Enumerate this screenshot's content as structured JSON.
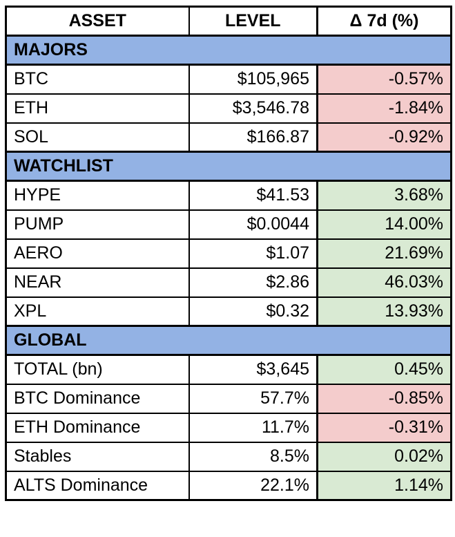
{
  "colors": {
    "section_blue": "#93b2e4",
    "negative_red": "#f4cccc",
    "positive_green": "#d9ead3",
    "border_black": "#000000"
  },
  "chart_data": {
    "type": "table",
    "columns": [
      "ASSET",
      "LEVEL",
      "Δ 7d (%)"
    ],
    "sections": [
      {
        "label": "MAJORS",
        "rows": [
          {
            "asset": "BTC",
            "level": "$105,965",
            "delta": "-0.57%",
            "delta_value": -0.57
          },
          {
            "asset": "ETH",
            "level": "$3,546.78",
            "delta": "-1.84%",
            "delta_value": -1.84
          },
          {
            "asset": "SOL",
            "level": "$166.87",
            "delta": "-0.92%",
            "delta_value": -0.92
          }
        ]
      },
      {
        "label": "WATCHLIST",
        "rows": [
          {
            "asset": "HYPE",
            "level": "$41.53",
            "delta": "3.68%",
            "delta_value": 3.68
          },
          {
            "asset": "PUMP",
            "level": "$0.0044",
            "delta": "14.00%",
            "delta_value": 14.0
          },
          {
            "asset": "AERO",
            "level": "$1.07",
            "delta": "21.69%",
            "delta_value": 21.69
          },
          {
            "asset": "NEAR",
            "level": "$2.86",
            "delta": "46.03%",
            "delta_value": 46.03
          },
          {
            "asset": "XPL",
            "level": "$0.32",
            "delta": "13.93%",
            "delta_value": 13.93
          }
        ]
      },
      {
        "label": "GLOBAL",
        "rows": [
          {
            "asset": "TOTAL (bn)",
            "level": "$3,645",
            "delta": "0.45%",
            "delta_value": 0.45
          },
          {
            "asset": "BTC Dominance",
            "level": "57.7%",
            "delta": "-0.85%",
            "delta_value": -0.85
          },
          {
            "asset": "ETH Dominance",
            "level": "11.7%",
            "delta": "-0.31%",
            "delta_value": -0.31
          },
          {
            "asset": "Stables",
            "level": "8.5%",
            "delta": "0.02%",
            "delta_value": 0.02
          },
          {
            "asset": "ALTS Dominance",
            "level": "22.1%",
            "delta": "1.14%",
            "delta_value": 1.14
          }
        ]
      }
    ]
  }
}
